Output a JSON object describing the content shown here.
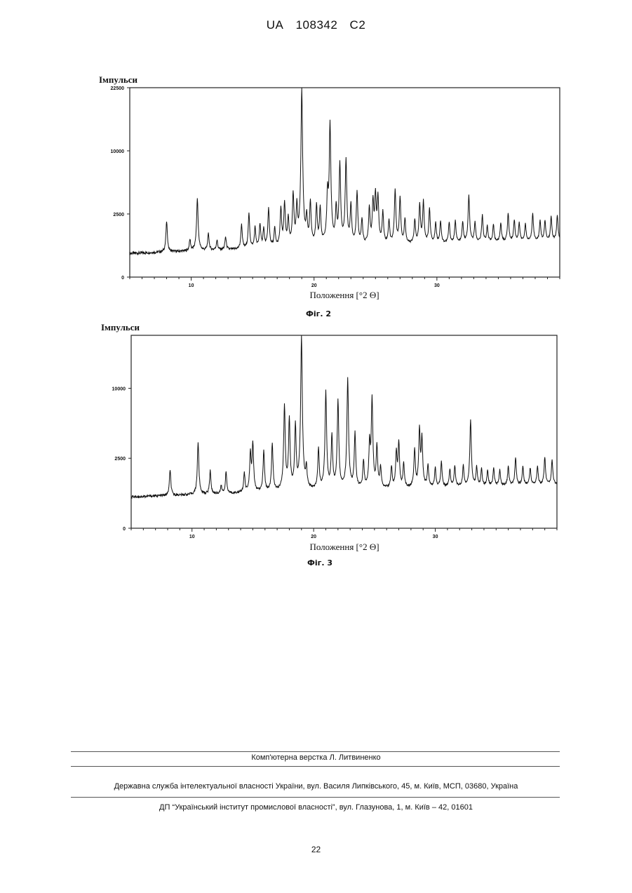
{
  "header": {
    "country": "UA",
    "number": "108342",
    "kind": "C2"
  },
  "chart_data": [
    {
      "type": "line",
      "caption": "Фіг. 2",
      "ylabel": "Імпульси",
      "xlabel": "Положення [°2 Θ]",
      "xlim": [
        5,
        40
      ],
      "x_ticks": [
        10,
        20,
        30
      ],
      "y_ticks": [
        0,
        2500,
        10000,
        22500
      ],
      "y_tick_labels": [
        "0",
        "2500",
        "10000",
        "22500"
      ],
      "y_scale": "sqrt",
      "ylim": [
        0,
        22500
      ],
      "baseline": 350,
      "series": [
        {
          "peaks": [
            [
              8.0,
              1900
            ],
            [
              9.9,
              800
            ],
            [
              10.5,
              3800
            ],
            [
              11.4,
              1100
            ],
            [
              12.1,
              750
            ],
            [
              12.8,
              900
            ],
            [
              14.1,
              1600
            ],
            [
              14.7,
              2400
            ],
            [
              15.2,
              1400
            ],
            [
              15.6,
              1600
            ],
            [
              15.9,
              1300
            ],
            [
              16.3,
              2800
            ],
            [
              16.8,
              1300
            ],
            [
              17.3,
              2800
            ],
            [
              17.6,
              3300
            ],
            [
              17.9,
              2000
            ],
            [
              18.3,
              4200
            ],
            [
              18.6,
              3000
            ],
            [
              19.0,
              22500
            ],
            [
              19.4,
              2000
            ],
            [
              19.7,
              3300
            ],
            [
              20.2,
              3000
            ],
            [
              20.5,
              2800
            ],
            [
              21.1,
              4200
            ],
            [
              21.3,
              14800
            ],
            [
              21.8,
              2800
            ],
            [
              22.1,
              8000
            ],
            [
              22.6,
              8500
            ],
            [
              23.0,
              3000
            ],
            [
              23.5,
              4300
            ],
            [
              23.9,
              1800
            ],
            [
              24.5,
              2800
            ],
            [
              24.8,
              3400
            ],
            [
              25.0,
              4100
            ],
            [
              25.2,
              3800
            ],
            [
              25.6,
              2400
            ],
            [
              26.1,
              1700
            ],
            [
              26.6,
              4500
            ],
            [
              27.0,
              3700
            ],
            [
              27.4,
              1800
            ],
            [
              28.2,
              1700
            ],
            [
              28.6,
              3000
            ],
            [
              28.9,
              3300
            ],
            [
              29.4,
              2600
            ],
            [
              29.9,
              1500
            ],
            [
              30.3,
              1600
            ],
            [
              31.0,
              1500
            ],
            [
              31.5,
              1600
            ],
            [
              32.1,
              1500
            ],
            [
              32.6,
              3800
            ],
            [
              33.1,
              1500
            ],
            [
              33.7,
              2000
            ],
            [
              34.1,
              1200
            ],
            [
              34.6,
              1300
            ],
            [
              35.2,
              1400
            ],
            [
              35.8,
              2100
            ],
            [
              36.3,
              1600
            ],
            [
              36.7,
              1400
            ],
            [
              37.2,
              1300
            ],
            [
              37.8,
              2100
            ],
            [
              38.4,
              1500
            ],
            [
              38.8,
              1500
            ],
            [
              39.3,
              1800
            ],
            [
              39.8,
              1900
            ]
          ]
        }
      ]
    },
    {
      "type": "line",
      "caption": "Фіг. 3",
      "ylabel": "Імпульси",
      "xlabel": "Положення [°2 Θ]",
      "xlim": [
        5,
        40
      ],
      "x_ticks": [
        10,
        20,
        30
      ],
      "y_ticks": [
        0,
        2500,
        10000
      ],
      "y_tick_labels": [
        "0",
        "2500",
        "10000"
      ],
      "y_scale": "sqrt",
      "ylim": [
        0,
        19000
      ],
      "baseline": 500,
      "series": [
        {
          "peaks": [
            [
              8.2,
              1700
            ],
            [
              10.5,
              3700
            ],
            [
              11.5,
              1600
            ],
            [
              12.4,
              800
            ],
            [
              12.8,
              1500
            ],
            [
              14.3,
              1400
            ],
            [
              14.8,
              2800
            ],
            [
              15.0,
              3600
            ],
            [
              15.9,
              2900
            ],
            [
              16.6,
              3500
            ],
            [
              17.6,
              7600
            ],
            [
              18.0,
              6000
            ],
            [
              18.5,
              5300
            ],
            [
              19.0,
              19000
            ],
            [
              19.4,
              1600
            ],
            [
              20.4,
              3000
            ],
            [
              21.0,
              9400
            ],
            [
              21.5,
              4200
            ],
            [
              22.0,
              8200
            ],
            [
              22.8,
              11300
            ],
            [
              23.4,
              4400
            ],
            [
              24.1,
              2000
            ],
            [
              24.6,
              3500
            ],
            [
              24.8,
              8500
            ],
            [
              25.2,
              3200
            ],
            [
              25.5,
              1600
            ],
            [
              26.4,
              1600
            ],
            [
              26.8,
              2700
            ],
            [
              27.0,
              3500
            ],
            [
              27.4,
              1800
            ],
            [
              28.3,
              2900
            ],
            [
              28.7,
              4800
            ],
            [
              28.9,
              3900
            ],
            [
              29.4,
              1700
            ],
            [
              30.0,
              1500
            ],
            [
              30.5,
              1900
            ],
            [
              31.2,
              1400
            ],
            [
              31.6,
              1600
            ],
            [
              32.3,
              1600
            ],
            [
              32.9,
              5600
            ],
            [
              33.4,
              1500
            ],
            [
              33.8,
              1400
            ],
            [
              34.3,
              1300
            ],
            [
              34.8,
              1400
            ],
            [
              35.3,
              1300
            ],
            [
              36.0,
              1500
            ],
            [
              36.6,
              2100
            ],
            [
              37.2,
              1500
            ],
            [
              37.8,
              1400
            ],
            [
              38.4,
              1500
            ],
            [
              39.0,
              2100
            ],
            [
              39.6,
              1900
            ]
          ]
        }
      ]
    }
  ],
  "footer": {
    "layout_credit": "Комп'ютерна верстка Л. Литвиненко",
    "office": "Державна служба інтелектуальної власності України, вул. Василя Липківського, 45, м. Київ, МСП, 03680, Україна",
    "institute": "ДП “Український інститут промислової власності”, вул. Глазунова, 1, м. Київ – 42, 01601"
  },
  "page_number": "22"
}
